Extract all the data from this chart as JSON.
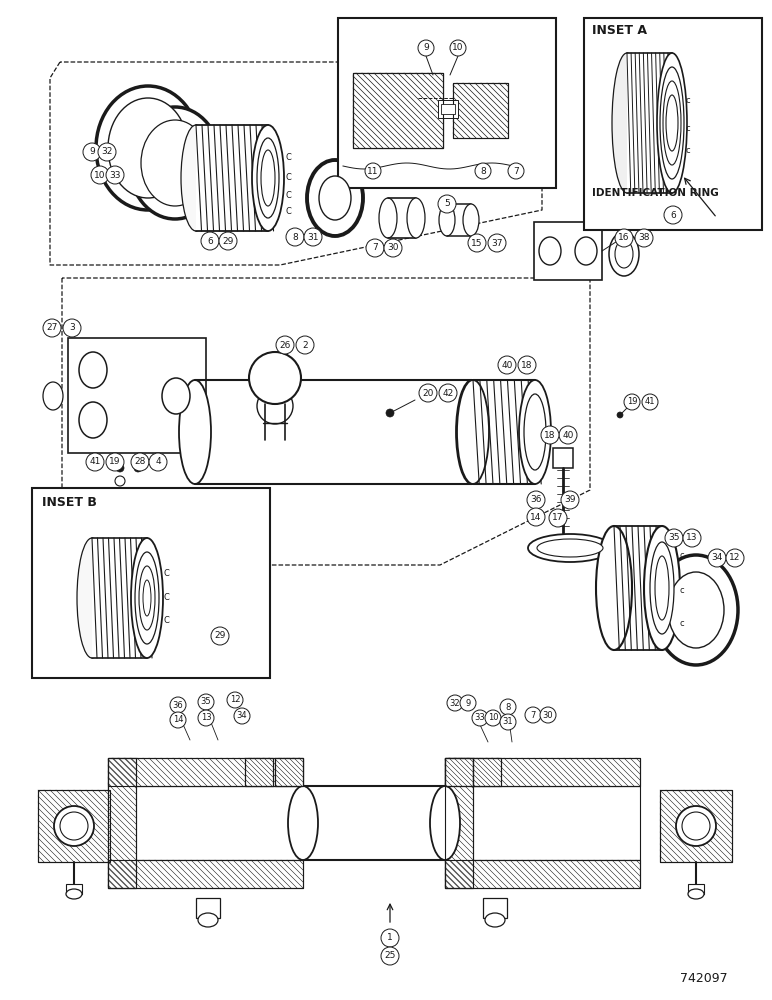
{
  "title": "742097",
  "bg_color": "#ffffff",
  "line_color": "#1a1a1a",
  "inset_a_label": "INSET A",
  "inset_b_label": "INSET B",
  "identification_ring_label": "IDENTIFICATION RING",
  "figsize": [
    7.72,
    10.0
  ],
  "dpi": 100
}
